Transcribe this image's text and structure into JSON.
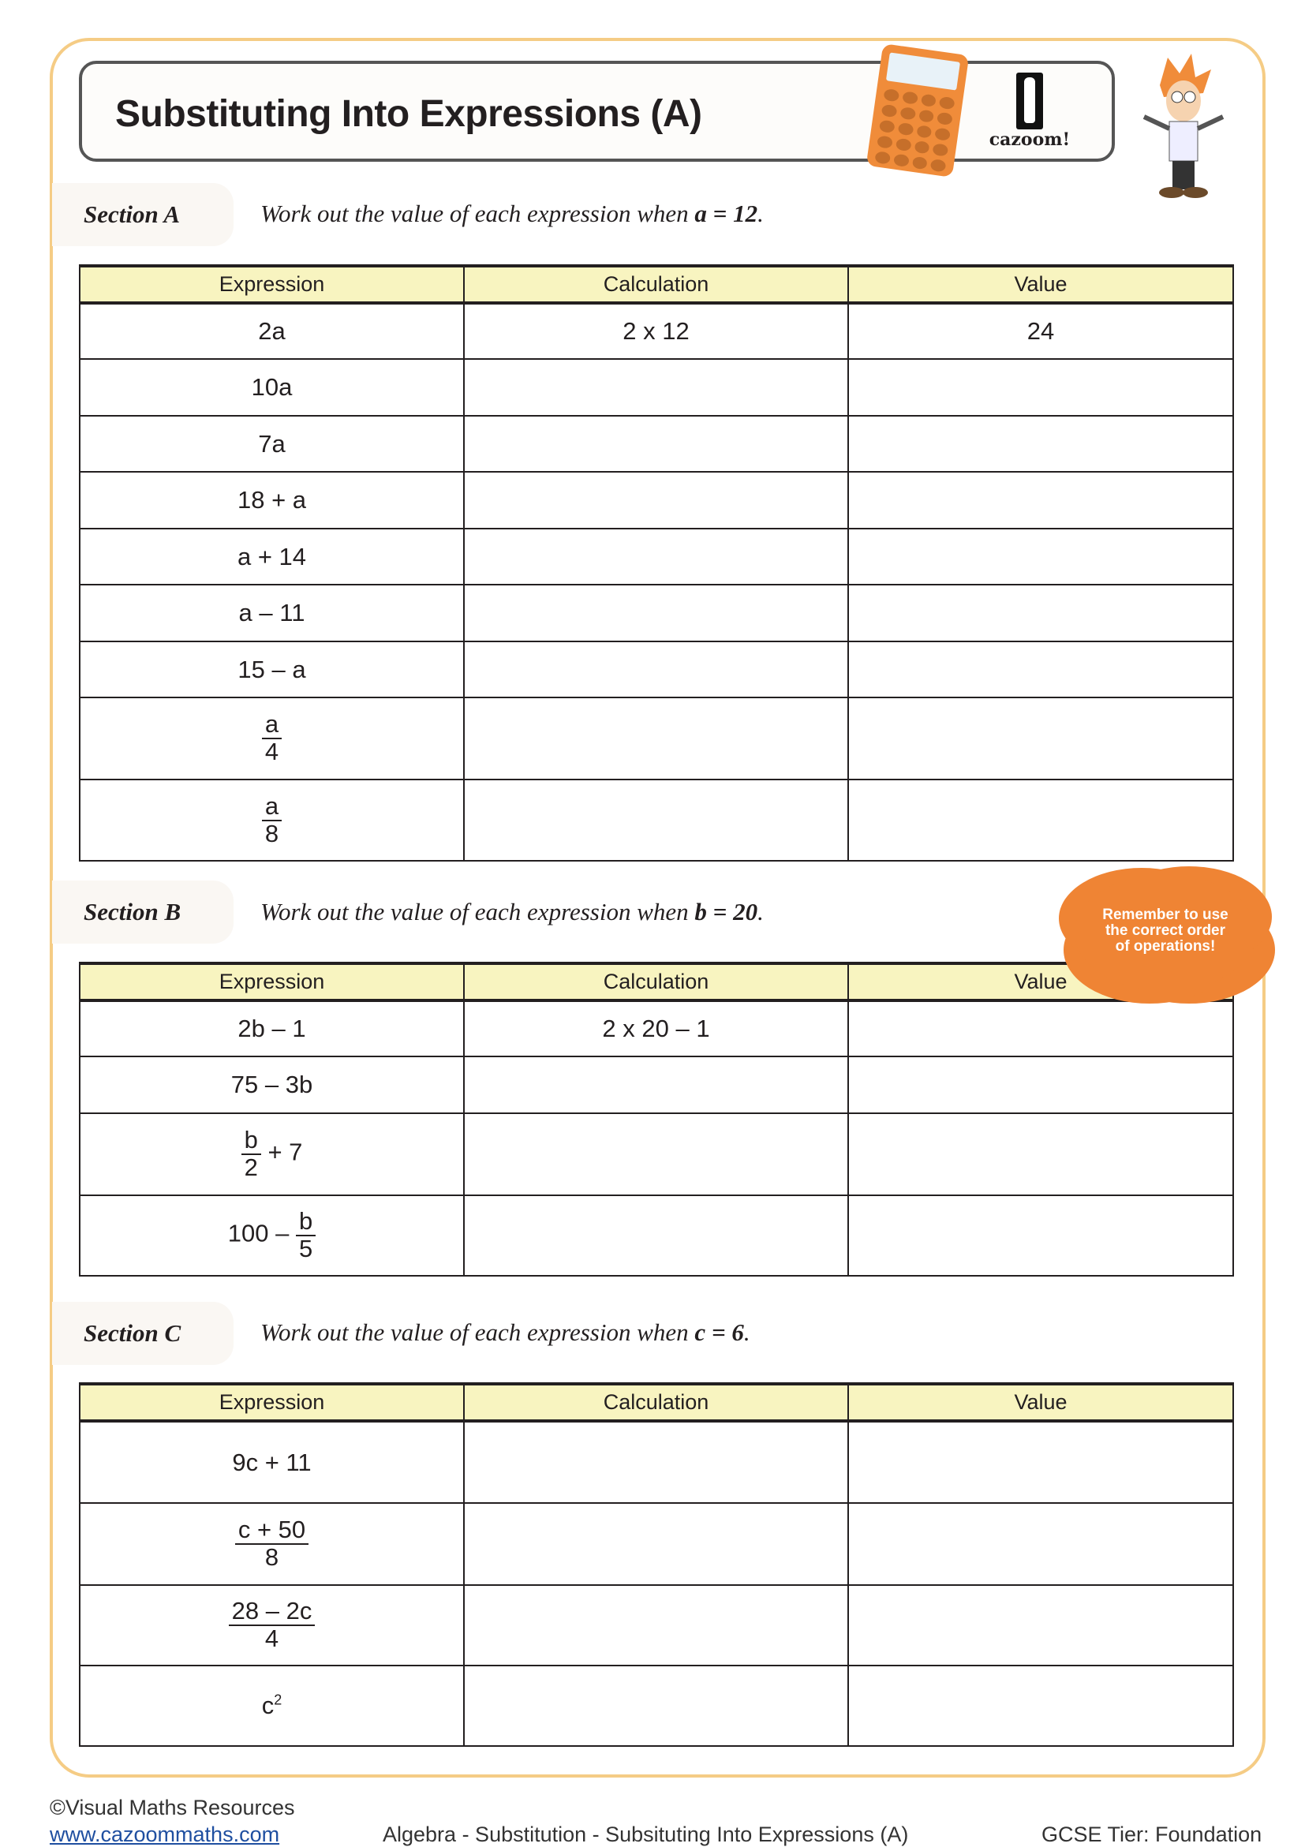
{
  "header": {
    "title": "Substituting Into Expressions (A)",
    "logo_text": "cazoom!"
  },
  "table_headers": {
    "expression": "Expression",
    "calculation": "Calculation",
    "value": "Value"
  },
  "section_a": {
    "label": "Section A",
    "instruction_prefix": "Work out the value of each expression when ",
    "variable": "a",
    "instruction_value": " = 12",
    "rows": [
      {
        "expression": "2a",
        "calculation": "2 x 12",
        "value": "24"
      },
      {
        "expression": "10a",
        "calculation": "",
        "value": ""
      },
      {
        "expression": "7a",
        "calculation": "",
        "value": ""
      },
      {
        "expression": "18 + a",
        "calculation": "",
        "value": ""
      },
      {
        "expression": "a + 14",
        "calculation": "",
        "value": ""
      },
      {
        "expression": "a – 11",
        "calculation": "",
        "value": ""
      },
      {
        "expression": "15 – a",
        "calculation": "",
        "value": ""
      },
      {
        "numerator": "a",
        "denominator": "4",
        "calculation": "",
        "value": ""
      },
      {
        "numerator": "a",
        "denominator": "8",
        "calculation": "",
        "value": ""
      }
    ]
  },
  "section_b": {
    "label": "Section B",
    "instruction_prefix": "Work out the value of each expression when ",
    "variable": "b",
    "instruction_value": " = 20",
    "rows": [
      {
        "expression": "2b – 1",
        "calculation": "2 x 20 – 1",
        "value": ""
      },
      {
        "expression": "75 – 3b",
        "calculation": "",
        "value": ""
      },
      {
        "numerator": "b",
        "denominator": "2",
        "suffix": " + 7",
        "calculation": "",
        "value": ""
      },
      {
        "prefix": "100 – ",
        "numerator": "b",
        "denominator": "5",
        "calculation": "",
        "value": ""
      }
    ]
  },
  "section_c": {
    "label": "Section C",
    "instruction_prefix": "Work out the value of each expression when ",
    "variable": "c",
    "instruction_value": " = 6",
    "rows": [
      {
        "expression": "9c + 11",
        "calculation": "",
        "value": ""
      },
      {
        "numerator": "c + 50",
        "denominator": "8",
        "calculation": "",
        "value": ""
      },
      {
        "numerator": "28 – 2c",
        "denominator": "4",
        "calculation": "",
        "value": ""
      },
      {
        "base": "c",
        "exponent": "2",
        "calculation": "",
        "value": ""
      }
    ]
  },
  "tip": {
    "line1": "Remember to use",
    "line2": "the correct order",
    "line3": "of operations!"
  },
  "footer": {
    "copyright": "©Visual Maths Resources",
    "website": "www.cazoommaths.com",
    "topic": "Algebra - Substitution - Subsituting Into Expressions (A)",
    "tier": "GCSE Tier: Foundation"
  },
  "colors": {
    "frame": "#f5cc85",
    "header_fill": "#f8f4c0",
    "accent": "#ef8434"
  }
}
